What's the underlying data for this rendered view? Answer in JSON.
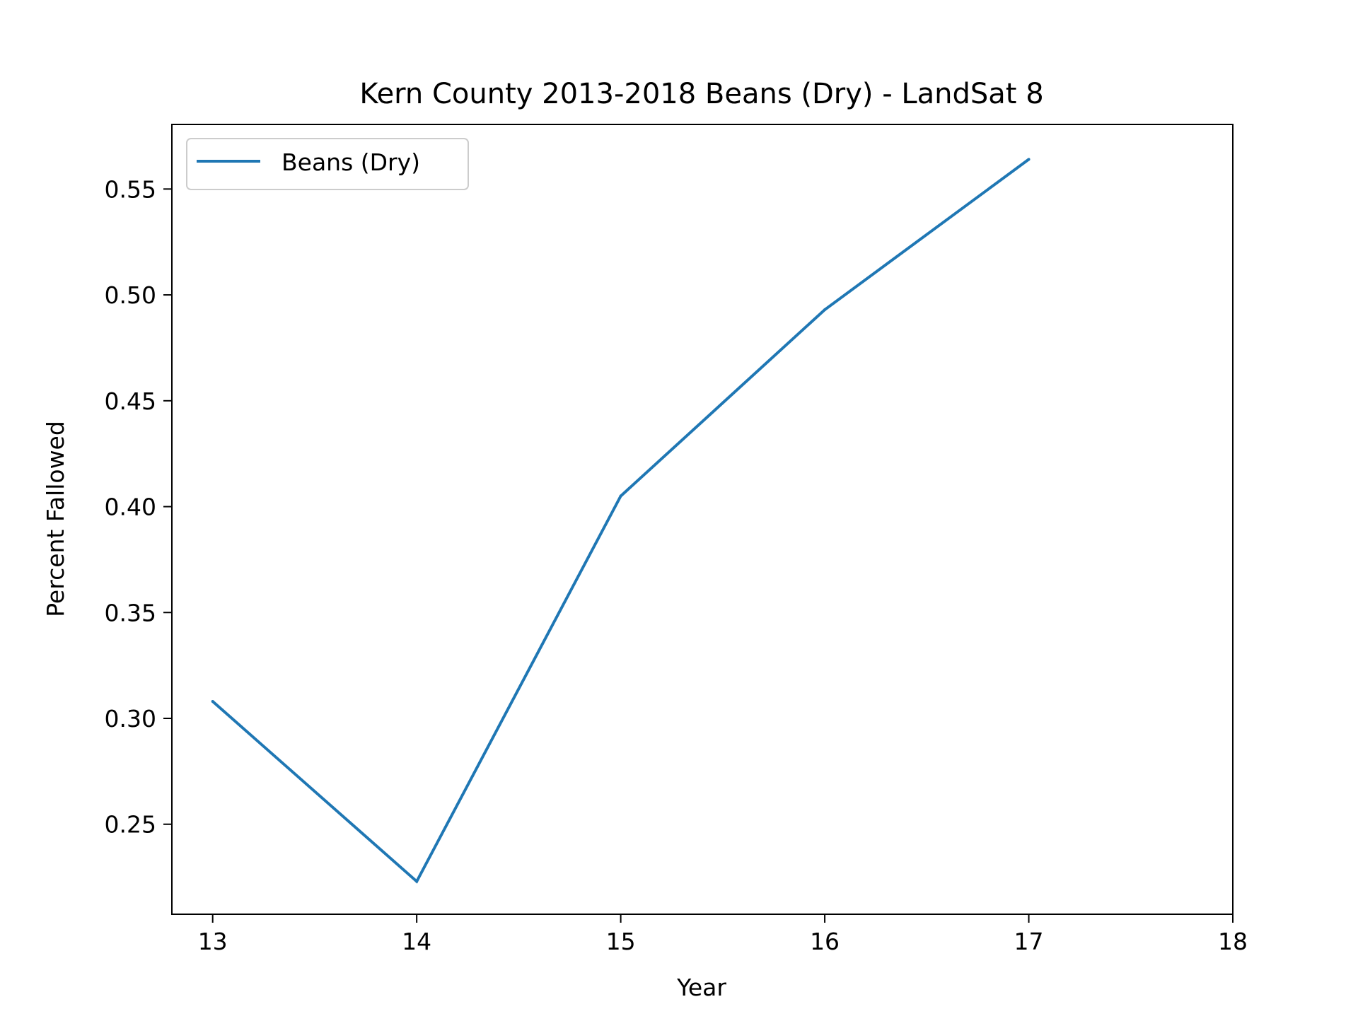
{
  "chart_data": {
    "type": "line",
    "title": "Kern County 2013-2018 Beans (Dry) - LandSat 8",
    "xlabel": "Year",
    "ylabel": "Percent Fallowed",
    "xlim": [
      12.8,
      18
    ],
    "ylim": [
      0.2075,
      0.5805
    ],
    "x_ticks": [
      13,
      14,
      15,
      16,
      17,
      18
    ],
    "x_tick_labels": [
      "13",
      "14",
      "15",
      "16",
      "17",
      "18"
    ],
    "y_ticks": [
      0.25,
      0.3,
      0.35,
      0.4,
      0.45,
      0.5,
      0.55
    ],
    "y_tick_labels": [
      "0.25",
      "0.30",
      "0.35",
      "0.40",
      "0.45",
      "0.50",
      "0.55"
    ],
    "grid": false,
    "legend_position": "upper left",
    "series": [
      {
        "name": "Beans (Dry)",
        "color": "#1f77b4",
        "x": [
          13,
          14,
          15,
          16,
          17
        ],
        "y": [
          0.308,
          0.223,
          0.405,
          0.493,
          0.564
        ]
      }
    ]
  }
}
